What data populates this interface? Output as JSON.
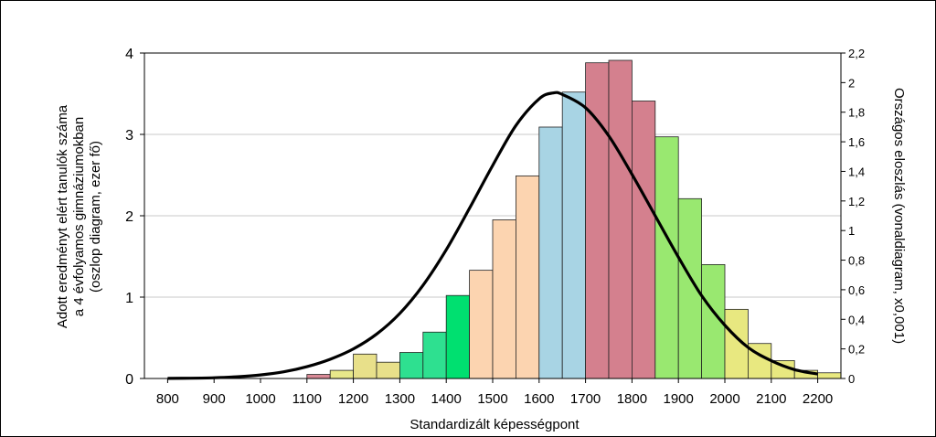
{
  "chart_data": {
    "type": "bar",
    "xlabel": "Standardizált képességpont",
    "ylabel_left_lines": [
      "Adott eredményt elért tanulók száma",
      "a 4 évfolyamos gimnáziumokban",
      "(oszlop diagram, ezer fő)"
    ],
    "ylabel_right": "Országos eloszlás (vonaldiagram, x0,001)",
    "x_range": [
      750,
      2250
    ],
    "x_ticks": [
      800,
      900,
      1000,
      1100,
      1200,
      1300,
      1400,
      1500,
      1600,
      1700,
      1800,
      1900,
      2000,
      2100,
      2200
    ],
    "x_tick_labels": [
      "800",
      "900",
      "1000",
      "1100",
      "1200",
      "1300",
      "1400",
      "1500",
      "1600",
      "1700",
      "1800",
      "1900",
      "2000",
      "2100",
      "2200"
    ],
    "ylim_left": [
      0,
      4
    ],
    "y_ticks_left": [
      0,
      1,
      2,
      3,
      4
    ],
    "y_tick_labels_left": [
      "0",
      "1",
      "2",
      "3",
      "4"
    ],
    "ylim_right": [
      0,
      2.2
    ],
    "y_ticks_right": [
      0,
      0.2,
      0.4,
      0.6,
      0.8,
      1,
      1.2,
      1.4,
      1.6,
      1.8,
      2,
      2.2
    ],
    "y_tick_labels_right": [
      "0",
      "0,2",
      "0,4",
      "0,6",
      "0,8",
      "1",
      "1,2",
      "1,4",
      "1,6",
      "1,8",
      "2",
      "2,2"
    ],
    "gridlines": true,
    "bars": [
      {
        "x": 1125,
        "value": 0.05,
        "color": "#d98a96"
      },
      {
        "x": 1175,
        "value": 0.1,
        "color": "#e8e88a"
      },
      {
        "x": 1225,
        "value": 0.3,
        "color": "#e8e08a"
      },
      {
        "x": 1275,
        "value": 0.2,
        "color": "#e8e08a"
      },
      {
        "x": 1325,
        "value": 0.32,
        "color": "#2ee090"
      },
      {
        "x": 1375,
        "value": 0.57,
        "color": "#2ee090"
      },
      {
        "x": 1425,
        "value": 1.02,
        "color": "#00e070"
      },
      {
        "x": 1475,
        "value": 1.33,
        "color": "#fcd4b0"
      },
      {
        "x": 1525,
        "value": 1.95,
        "color": "#fcd4b0"
      },
      {
        "x": 1575,
        "value": 2.49,
        "color": "#fcd4b0"
      },
      {
        "x": 1625,
        "value": 3.09,
        "color": "#a8d4e4"
      },
      {
        "x": 1675,
        "value": 3.52,
        "color": "#a8d4e4"
      },
      {
        "x": 1725,
        "value": 3.88,
        "color": "#d4808e"
      },
      {
        "x": 1775,
        "value": 3.91,
        "color": "#d4808e"
      },
      {
        "x": 1825,
        "value": 3.41,
        "color": "#d4808e"
      },
      {
        "x": 1875,
        "value": 2.97,
        "color": "#99e870"
      },
      {
        "x": 1925,
        "value": 2.21,
        "color": "#99e870"
      },
      {
        "x": 1975,
        "value": 1.4,
        "color": "#99e870"
      },
      {
        "x": 2025,
        "value": 0.85,
        "color": "#e8e880"
      },
      {
        "x": 2075,
        "value": 0.43,
        "color": "#e8e880"
      },
      {
        "x": 2125,
        "value": 0.22,
        "color": "#e8e880"
      },
      {
        "x": 2175,
        "value": 0.1,
        "color": "#e8e880"
      },
      {
        "x": 2225,
        "value": 0.07,
        "color": "#e8e880"
      }
    ],
    "line_series": {
      "name": "Országos eloszlás",
      "axis": "right",
      "x": [
        800,
        850,
        900,
        950,
        1000,
        1050,
        1100,
        1150,
        1200,
        1250,
        1300,
        1350,
        1400,
        1450,
        1500,
        1550,
        1600,
        1630,
        1650,
        1700,
        1750,
        1800,
        1850,
        1900,
        1950,
        2000,
        2050,
        2100,
        2150,
        2200
      ],
      "y": [
        0.001,
        0.002,
        0.005,
        0.012,
        0.024,
        0.045,
        0.08,
        0.13,
        0.2,
        0.3,
        0.44,
        0.63,
        0.87,
        1.15,
        1.44,
        1.71,
        1.89,
        1.93,
        1.92,
        1.83,
        1.64,
        1.38,
        1.1,
        0.82,
        0.56,
        0.36,
        0.21,
        0.12,
        0.06,
        0.03
      ]
    }
  }
}
